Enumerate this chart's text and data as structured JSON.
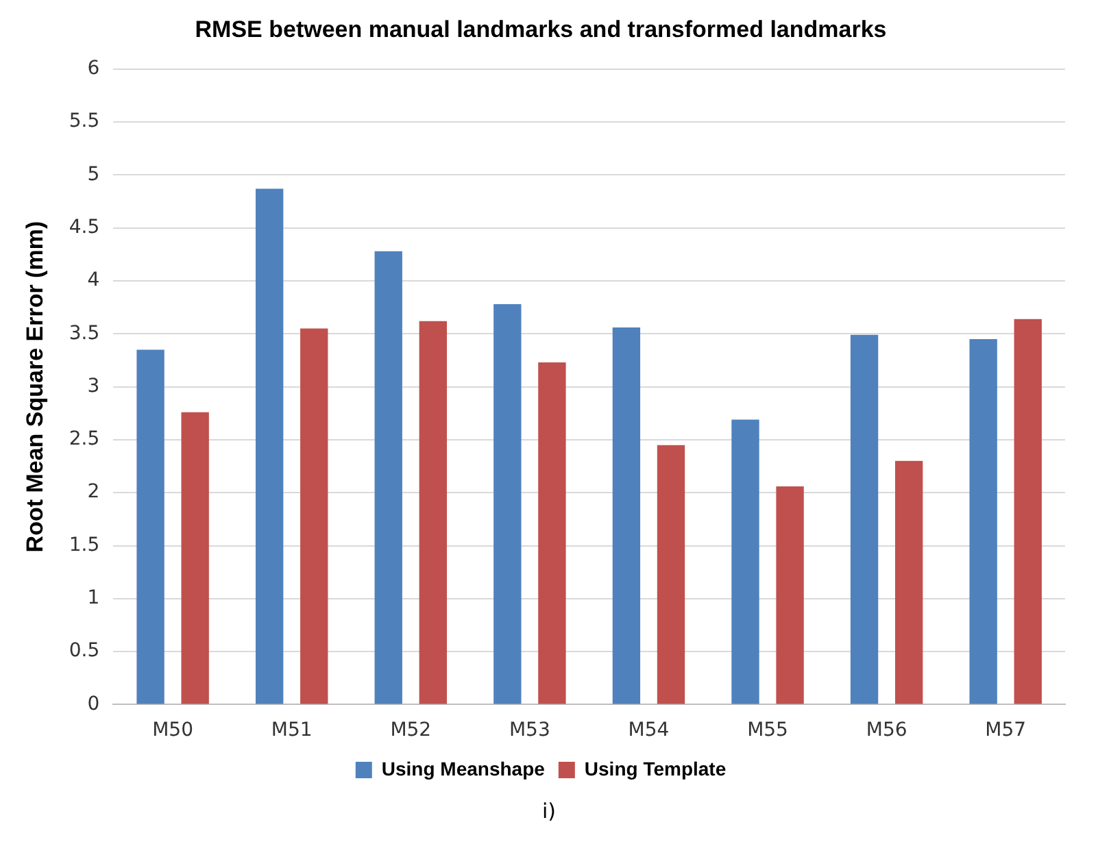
{
  "chart_data": {
    "type": "bar",
    "title": "RMSE between manual landmarks and transformed landmarks",
    "ylabel": "Root Mean Square Error (mm)",
    "categories": [
      "M50",
      "M51",
      "M52",
      "M53",
      "M54",
      "M55",
      "M56",
      "M57"
    ],
    "series": [
      {
        "name": "Using Meanshape",
        "color": "#4f81bd",
        "values": [
          3.35,
          4.87,
          4.28,
          3.78,
          3.56,
          2.69,
          3.49,
          3.45
        ]
      },
      {
        "name": "Using Template",
        "color": "#c0504d",
        "values": [
          2.76,
          3.55,
          3.62,
          3.23,
          2.45,
          2.06,
          2.3,
          3.64
        ]
      }
    ],
    "ylim": [
      0,
      6
    ],
    "yticks": [
      0,
      0.5,
      1,
      1.5,
      2,
      2.5,
      3,
      3.5,
      4,
      4.5,
      5,
      5.5,
      6
    ],
    "grid": "y",
    "legend": "bottom",
    "annotations": [
      "i)"
    ]
  }
}
